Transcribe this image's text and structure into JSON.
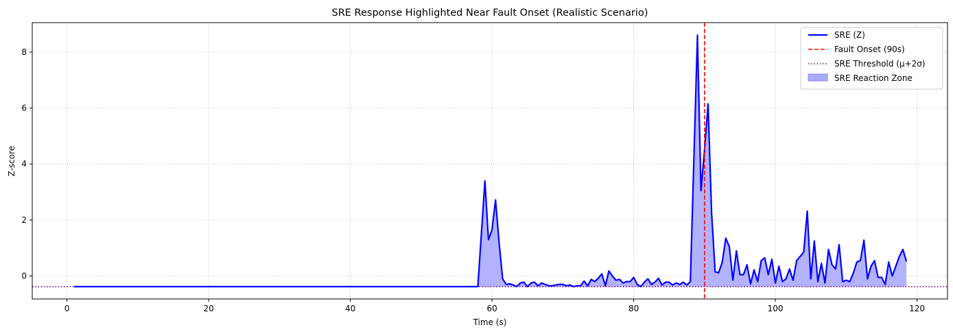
{
  "chart_data": {
    "type": "line",
    "title": "SRE Response Highlighted Near Fault Onset (Realistic Scenario)",
    "xlabel": "Time (s)",
    "ylabel": "Z-score",
    "xlim": [
      -4.9,
      124.3
    ],
    "ylim": [
      -0.82,
      9.05
    ],
    "xticks": [
      0,
      20,
      40,
      60,
      80,
      100,
      120
    ],
    "yticks": [
      0,
      2,
      4,
      6,
      8
    ],
    "grid": true,
    "legend_position": "top-right",
    "threshold": -0.38,
    "fault_onset": 90,
    "series": [
      {
        "name": "SRE (Z)",
        "color": "#0000ff",
        "x": [
          1,
          58,
          59,
          59.5,
          60,
          60.5,
          61,
          61.5,
          62,
          62.5,
          63,
          63.5,
          64,
          64.5,
          65,
          65.5,
          66,
          66.5,
          67,
          67.5,
          68,
          68.5,
          69,
          69.5,
          70,
          70.5,
          71,
          71.5,
          72,
          72.5,
          73,
          73.5,
          74,
          74.5,
          75,
          75.5,
          76,
          76.5,
          77,
          77.5,
          78,
          78.5,
          79,
          79.5,
          80,
          80.5,
          81,
          81.5,
          82,
          82.5,
          83,
          83.5,
          84,
          84.5,
          85,
          85.5,
          86,
          86.5,
          87,
          87.5,
          88,
          89,
          89.5,
          90,
          90.5,
          91,
          91.5,
          92,
          92.5,
          93,
          93.5,
          94,
          94.5,
          95,
          95.5,
          96,
          96.5,
          97,
          97.5,
          98,
          98.5,
          99,
          99.5,
          100,
          100.5,
          101,
          101.5,
          102,
          102.5,
          103,
          103.5,
          104,
          104.5,
          105,
          105.5,
          106,
          106.5,
          107,
          107.5,
          108,
          108.5,
          109,
          109.5,
          110,
          110.5,
          111,
          111.5,
          112,
          112.5,
          113,
          113.5,
          114,
          114.5,
          115,
          115.5,
          116,
          116.5,
          117,
          117.5,
          118,
          118.5
        ],
        "values": [
          -0.38,
          -0.38,
          3.4,
          1.3,
          1.65,
          2.72,
          1.2,
          -0.1,
          -0.3,
          -0.28,
          -0.32,
          -0.38,
          -0.25,
          -0.22,
          -0.38,
          -0.25,
          -0.22,
          -0.35,
          -0.25,
          -0.3,
          -0.35,
          -0.35,
          -0.32,
          -0.3,
          -0.3,
          -0.35,
          -0.32,
          -0.38,
          -0.35,
          -0.35,
          -0.18,
          -0.35,
          -0.12,
          -0.2,
          -0.08,
          0.08,
          -0.35,
          0.18,
          0.0,
          -0.15,
          -0.12,
          -0.25,
          -0.2,
          -0.2,
          -0.05,
          -0.3,
          -0.38,
          -0.22,
          -0.1,
          -0.3,
          -0.22,
          -0.08,
          -0.32,
          -0.22,
          -0.22,
          -0.32,
          -0.25,
          -0.3,
          -0.22,
          -0.32,
          -0.2,
          8.6,
          3.05,
          4.5,
          6.15,
          2.25,
          0.15,
          0.12,
          0.5,
          1.35,
          1.05,
          -0.15,
          0.9,
          0.05,
          0.05,
          0.4,
          -0.28,
          0.22,
          -0.2,
          0.55,
          0.65,
          0.05,
          0.6,
          -0.25,
          0.35,
          -0.2,
          -0.1,
          0.25,
          -0.15,
          0.55,
          0.7,
          0.85,
          2.32,
          -0.1,
          1.25,
          -0.2,
          0.45,
          -0.25,
          0.95,
          0.4,
          0.25,
          1.12,
          -0.2,
          -0.15,
          -0.2,
          0.1,
          0.5,
          0.55,
          1.28,
          -0.1,
          0.35,
          0.55,
          -0.05,
          -0.05,
          -0.3,
          0.5,
          0.0,
          0.35,
          0.7,
          0.95,
          0.52
        ]
      }
    ],
    "legend": [
      {
        "label": "SRE (Z)",
        "style": "solid",
        "color": "#0000ff"
      },
      {
        "label": "Fault Onset (90s)",
        "style": "dashed",
        "color": "#ff0000"
      },
      {
        "label": "SRE Threshold (μ+2σ)",
        "style": "dotted",
        "color": "#800080"
      },
      {
        "label": "SRE Reaction Zone",
        "style": "fill",
        "color": "#aaaaff"
      }
    ],
    "colors": {
      "line": "#0000ff",
      "fill": "#aaaaff",
      "fault": "#ff0000",
      "threshold": "#800080",
      "grid": "#b0b0b0"
    }
  }
}
